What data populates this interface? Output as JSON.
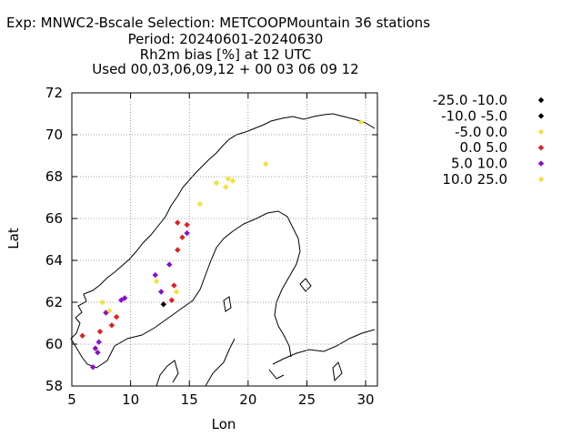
{
  "chart_data": {
    "type": "scatter",
    "title_lines": [
      "Exp: MNWC2-Bscale   Selection: METCOOPMountain     36 stations",
      "Period: 20240601-20240630",
      "Rh2m bias [%] at  12 UTC",
      "Used 00,03,06,09,12 + 00 03 06 09 12"
    ],
    "xlabel": "Lon",
    "ylabel": "Lat",
    "xlim": [
      5,
      31
    ],
    "ylim": [
      58,
      72
    ],
    "xticks": [
      5,
      10,
      15,
      20,
      25,
      30
    ],
    "yticks": [
      58,
      60,
      62,
      64,
      66,
      68,
      70,
      72
    ],
    "grid": true,
    "legend_position": "right",
    "legend": [
      {
        "label": "-25.0 -10.0",
        "color": "#000000"
      },
      {
        "label": "-10.0 -5.0",
        "color": "#000000"
      },
      {
        "label": "-5.0 0.0",
        "color": "#f5e03c"
      },
      {
        "label": "0.0 5.0",
        "color": "#e02020"
      },
      {
        "label": "5.0 10.0",
        "color": "#8a10c8"
      },
      {
        "label": "10.0 25.0",
        "color": "#f5e03c"
      }
    ],
    "points": [
      {
        "lon": 5.9,
        "lat": 60.4,
        "bin": 3
      },
      {
        "lon": 6.8,
        "lat": 58.9,
        "bin": 4
      },
      {
        "lon": 7.0,
        "lat": 59.8,
        "bin": 4
      },
      {
        "lon": 7.2,
        "lat": 59.6,
        "bin": 4
      },
      {
        "lon": 7.3,
        "lat": 60.1,
        "bin": 4
      },
      {
        "lon": 7.4,
        "lat": 60.6,
        "bin": 3
      },
      {
        "lon": 7.6,
        "lat": 62.0,
        "bin": 2
      },
      {
        "lon": 7.9,
        "lat": 61.5,
        "bin": 4
      },
      {
        "lon": 8.2,
        "lat": 61.6,
        "bin": 2
      },
      {
        "lon": 8.4,
        "lat": 60.9,
        "bin": 3
      },
      {
        "lon": 8.8,
        "lat": 61.3,
        "bin": 3
      },
      {
        "lon": 9.2,
        "lat": 62.1,
        "bin": 4
      },
      {
        "lon": 9.5,
        "lat": 62.2,
        "bin": 4
      },
      {
        "lon": 12.1,
        "lat": 63.3,
        "bin": 4
      },
      {
        "lon": 12.2,
        "lat": 63.0,
        "bin": 2
      },
      {
        "lon": 12.6,
        "lat": 62.5,
        "bin": 4
      },
      {
        "lon": 12.8,
        "lat": 61.9,
        "bin": 1
      },
      {
        "lon": 13.3,
        "lat": 63.8,
        "bin": 4
      },
      {
        "lon": 13.5,
        "lat": 62.1,
        "bin": 3
      },
      {
        "lon": 13.7,
        "lat": 62.8,
        "bin": 3
      },
      {
        "lon": 13.9,
        "lat": 62.5,
        "bin": 2
      },
      {
        "lon": 14.0,
        "lat": 64.5,
        "bin": 3
      },
      {
        "lon": 14.0,
        "lat": 65.8,
        "bin": 3
      },
      {
        "lon": 14.4,
        "lat": 65.1,
        "bin": 3
      },
      {
        "lon": 14.8,
        "lat": 65.3,
        "bin": 4
      },
      {
        "lon": 14.8,
        "lat": 65.7,
        "bin": 3
      },
      {
        "lon": 15.9,
        "lat": 66.7,
        "bin": 2
      },
      {
        "lon": 17.3,
        "lat": 67.7,
        "bin": 2
      },
      {
        "lon": 18.1,
        "lat": 67.5,
        "bin": 2
      },
      {
        "lon": 18.3,
        "lat": 67.9,
        "bin": 2
      },
      {
        "lon": 18.7,
        "lat": 67.8,
        "bin": 2
      },
      {
        "lon": 21.5,
        "lat": 68.6,
        "bin": 2
      },
      {
        "lon": 29.6,
        "lat": 70.6,
        "bin": 2
      }
    ]
  }
}
